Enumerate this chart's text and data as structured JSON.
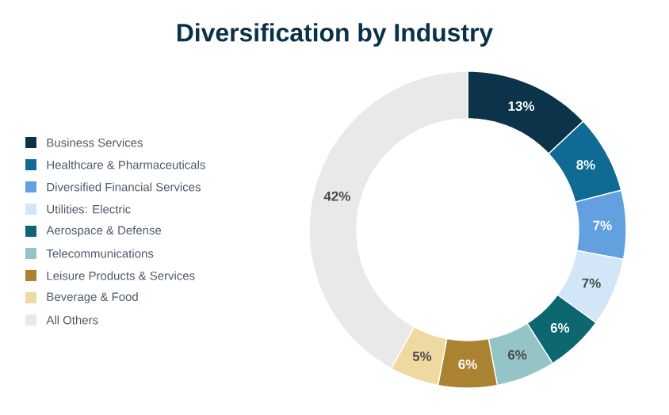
{
  "chart_data": {
    "type": "donut",
    "title": "Diversification by Industry",
    "categories": [
      "Business Services",
      "Healthcare & Pharmaceuticals",
      "Diversified Financial Services",
      "Utilities: Electric",
      "Aerospace & Defense",
      "Telecommunications",
      "Leisure Products & Services",
      "Beverage & Food",
      "All Others"
    ],
    "values": [
      13,
      8,
      7,
      7,
      6,
      6,
      6,
      5,
      42
    ],
    "value_labels": [
      "13%",
      "8%",
      "7%",
      "7%",
      "6%",
      "6%",
      "6%",
      "5%",
      "42%"
    ],
    "colors": [
      "#0b3349",
      "#106b94",
      "#62a0e0",
      "#d2e6f7",
      "#0c6770",
      "#94c4c6",
      "#ab8231",
      "#eed9a1",
      "#e9e9e9"
    ],
    "legend": "left"
  }
}
